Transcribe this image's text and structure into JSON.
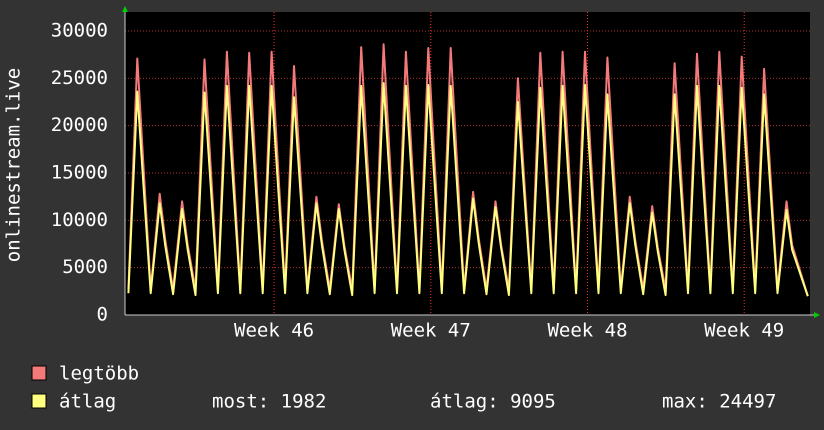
{
  "chart_data": {
    "type": "line",
    "y_label": "onlinestream.live",
    "x": [
      0.15,
      0.55,
      0.8,
      1.15,
      1.55,
      1.8,
      2.15,
      2.55,
      2.8,
      3.15,
      3.55,
      3.8,
      4.15,
      4.55,
      4.8,
      5.15,
      5.55,
      5.8,
      6.15,
      6.55,
      6.8,
      7.15,
      7.55,
      7.8,
      8.15,
      8.55,
      8.8,
      9.15,
      9.55,
      9.8,
      10.15,
      10.55,
      10.8,
      11.15,
      11.55,
      11.8,
      12.15,
      12.55,
      12.8,
      13.15,
      13.55,
      13.8,
      14.15,
      14.55,
      14.8,
      15.15,
      15.55,
      15.8,
      16.15,
      16.55,
      16.8,
      17.15,
      17.55,
      17.8,
      18.15,
      18.55,
      18.8,
      19.15,
      19.55,
      19.8,
      20.15,
      20.55,
      20.8,
      21.15,
      21.55,
      21.8,
      22.15,
      22.55,
      22.8,
      23.15,
      23.55,
      23.8,
      24.15,
      24.55,
      24.8,
      25.15,
      25.55,
      25.8,
      26.15,
      26.55,
      26.8,
      27.15,
      27.55,
      27.8,
      28.15,
      28.55,
      28.8,
      29.15,
      29.55,
      29.8,
      30.5
    ],
    "series": [
      {
        "name": "legtöbb",
        "color": "#f47a7a",
        "values": [
          2700,
          27100,
          16800,
          2700,
          12800,
          7900,
          2700,
          12000,
          7400,
          2700,
          27000,
          16700,
          2700,
          27800,
          17200,
          2700,
          27700,
          17200,
          2700,
          27800,
          17200,
          2700,
          26300,
          16300,
          2700,
          12500,
          7800,
          2700,
          11700,
          7300,
          2700,
          28300,
          17500,
          2700,
          28600,
          17700,
          2700,
          27800,
          17200,
          2700,
          28200,
          17500,
          2700,
          28200,
          17500,
          2700,
          13000,
          8100,
          2700,
          12000,
          7400,
          2700,
          25000,
          15500,
          2700,
          27700,
          17200,
          2700,
          27800,
          17200,
          2700,
          27800,
          17200,
          2700,
          27200,
          16900,
          2700,
          12500,
          7800,
          2700,
          11500,
          7100,
          2700,
          26600,
          16500,
          2700,
          27600,
          17100,
          2700,
          27800,
          17200,
          2700,
          27300,
          16900,
          2700,
          26000,
          16100,
          2700,
          12000,
          7400,
          2000
        ]
      },
      {
        "name": "átlag",
        "color": "#ffff80",
        "values": [
          2300,
          23600,
          14600,
          2300,
          11800,
          7300,
          2200,
          11200,
          6900,
          2100,
          23500,
          14600,
          2300,
          24200,
          15000,
          2300,
          24200,
          15000,
          2300,
          24200,
          15000,
          2300,
          23000,
          14300,
          2300,
          11800,
          7300,
          2200,
          11200,
          6900,
          2100,
          24200,
          15000,
          2300,
          24497,
          15200,
          2300,
          24200,
          15000,
          2300,
          24300,
          15100,
          2300,
          24200,
          15000,
          2300,
          12300,
          7600,
          2200,
          11400,
          7100,
          2100,
          22500,
          14000,
          2300,
          24000,
          14900,
          2300,
          24200,
          15000,
          2300,
          24300,
          15100,
          2300,
          23300,
          14400,
          2300,
          11800,
          7300,
          2200,
          10800,
          6700,
          2100,
          23300,
          14400,
          2300,
          24200,
          15000,
          2300,
          24200,
          15000,
          2300,
          24000,
          14900,
          2300,
          23300,
          14400,
          2300,
          11100,
          6900,
          1982
        ]
      }
    ],
    "stats": [
      "most: 1982",
      "átlag: 9095",
      "max: 24497"
    ],
    "xlim": [
      0,
      30.6
    ],
    "xticks": [
      {
        "value": 6.66,
        "label": "Week 46"
      },
      {
        "value": 13.66,
        "label": "Week 47"
      },
      {
        "value": 20.66,
        "label": "Week 48"
      },
      {
        "value": 27.66,
        "label": "Week 49"
      }
    ],
    "ylim": [
      0,
      30000
    ],
    "yticks": [
      0,
      5000,
      10000,
      15000,
      20000,
      25000,
      30000
    ],
    "grid": true
  }
}
